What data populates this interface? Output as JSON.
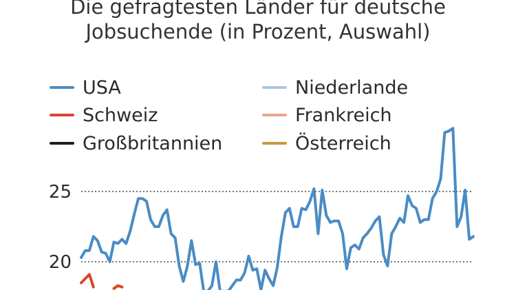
{
  "chart_data": {
    "type": "line",
    "title_line1": "Die gefragtesten Länder für deutsche",
    "title_line2": "Jobsuchende (in Prozent, Auswahl)",
    "ylim": [
      17.9,
      29.6
    ],
    "yticks": [
      20,
      25
    ],
    "grid": "dotted-horizontal",
    "legend_position": "top",
    "series": [
      {
        "name": "USA",
        "color": "#4a8cc4",
        "values": [
          20.3,
          20.8,
          20.8,
          21.8,
          21.5,
          20.7,
          20.6,
          20.0,
          21.4,
          21.3,
          21.6,
          21.3,
          22.2,
          23.4,
          24.5,
          24.5,
          24.3,
          23.0,
          22.5,
          22.5,
          23.3,
          23.7,
          22.0,
          21.7,
          19.7,
          18.6,
          19.7,
          21.5,
          19.8,
          19.9,
          17.9,
          17.9,
          18.3,
          20.0,
          17.9,
          17.9,
          17.9,
          18.3,
          18.7,
          18.7,
          19.2,
          20.4,
          19.4,
          19.5,
          18.0,
          19.4,
          18.8,
          18.3,
          19.6,
          21.8,
          23.5,
          23.8,
          22.5,
          22.5,
          23.8,
          23.7,
          24.3,
          25.2,
          22.0,
          25.1,
          23.3,
          22.8,
          22.9,
          22.9,
          22.0,
          19.5,
          21.0,
          21.2,
          20.9,
          21.7,
          22.0,
          22.4,
          22.9,
          23.2,
          20.5,
          19.7,
          22.0,
          22.5,
          23.1,
          22.8,
          24.7,
          24.0,
          23.8,
          22.8,
          23.0,
          23.0,
          24.5,
          25.0,
          25.9,
          29.2,
          29.3,
          29.5,
          22.5,
          23.2,
          25.1,
          21.6,
          21.8
        ]
      },
      {
        "name": "Schweiz",
        "color": "#d9462b",
        "values": [
          18.5,
          18.8,
          19.1,
          18.2,
          null,
          null,
          null,
          null,
          18.1,
          18.3,
          18.2,
          null,
          null,
          null,
          null,
          null,
          null,
          null,
          null,
          null,
          null,
          null,
          null,
          null,
          null,
          null,
          null,
          null,
          null,
          null,
          null,
          null,
          null,
          null,
          null,
          null,
          null,
          null,
          null,
          null,
          null,
          null,
          null,
          null,
          null,
          null,
          null,
          null,
          null,
          null,
          null,
          null,
          null,
          null,
          null,
          null,
          null,
          null,
          null,
          null,
          null,
          null,
          null,
          null,
          null,
          null,
          null,
          null,
          null,
          null,
          null,
          null,
          null,
          null,
          null,
          null,
          null,
          null,
          null,
          null,
          null,
          null,
          null,
          null,
          null,
          null,
          null,
          null,
          null,
          null,
          null,
          null,
          null,
          null,
          null,
          null,
          null
        ]
      },
      {
        "name": "Großbritannien",
        "color": "#1c1c1c",
        "values": []
      },
      {
        "name": "Niederlande",
        "color": "#a9c7e3",
        "values": []
      },
      {
        "name": "Frankreich",
        "color": "#eda58a",
        "values": []
      },
      {
        "name": "Österreich",
        "color": "#c49a3c",
        "values": []
      }
    ]
  }
}
